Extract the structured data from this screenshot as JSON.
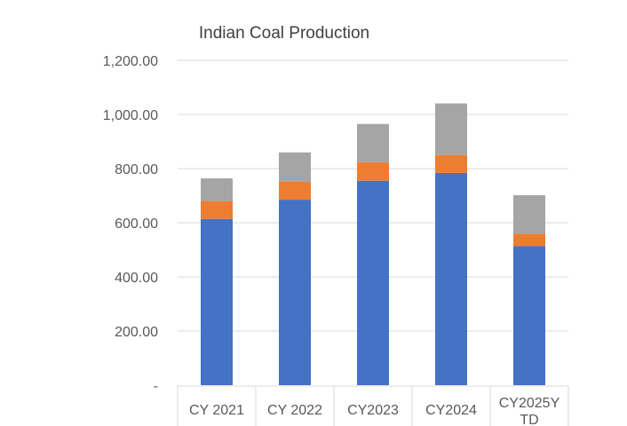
{
  "chart_data": {
    "type": "bar",
    "stacked": true,
    "title": "Indian Coal Production",
    "xlabel": "",
    "ylabel": "",
    "categories": [
      "CY 2021",
      "CY 2022",
      "CY2023",
      "CY2024",
      "CY2025YTD"
    ],
    "category_label_lines": [
      [
        "CY 2021"
      ],
      [
        "CY 2022"
      ],
      [
        "CY2023"
      ],
      [
        "CY2024"
      ],
      [
        "CY2025Y",
        "TD"
      ]
    ],
    "series": [
      {
        "values": [
          614,
          685,
          755,
          784,
          514
        ],
        "color": "#4472C4"
      },
      {
        "values": [
          66,
          66,
          69,
          66,
          46
        ],
        "color": "#ED7D31"
      },
      {
        "values": [
          84,
          109,
          141,
          191,
          142
        ],
        "color": "#A5A5A5"
      }
    ],
    "ylim": [
      0,
      1200
    ],
    "yticks": [
      0,
      200,
      400,
      600,
      800,
      1000,
      1200
    ],
    "ytick_labels": [
      "-",
      "200.00",
      "400.00",
      "600.00",
      "800.00",
      "1,000.00",
      "1,200.00"
    ],
    "grid": true,
    "legend": "none"
  }
}
